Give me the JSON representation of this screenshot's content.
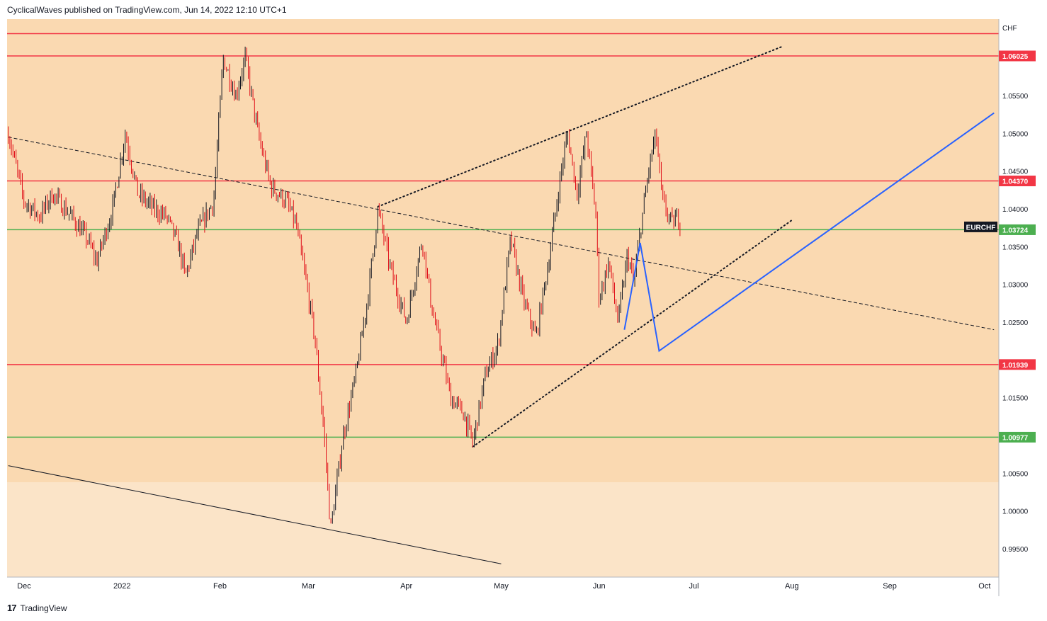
{
  "header": {
    "text": "CyclicalWaves published on TradingView.com, Jun 14, 2022 12:10 UTC+1"
  },
  "footer": {
    "logo_glyph": "17",
    "brand": "TradingView"
  },
  "chart_data": {
    "type": "candlestick",
    "symbol": "EURCHF",
    "currency": "CHF",
    "price_axis_ticks": [
      "1.05500",
      "1.05000",
      "1.04500",
      "1.04000",
      "1.03500",
      "1.03000",
      "1.02500",
      "1.01500",
      "1.00500",
      "1.00000",
      "0.99500"
    ],
    "time_axis_labels": [
      "Dec",
      "2022",
      "Feb",
      "Mar",
      "Apr",
      "May",
      "Jun",
      "Jul",
      "Aug",
      "Sep",
      "Oct"
    ],
    "ylim": [
      0.9935,
      1.065
    ],
    "horizontal_levels": [
      {
        "price": 1.06025,
        "label": "1.06025",
        "color": "#f23645"
      },
      {
        "price": 1.0437,
        "label": "1.04370",
        "color": "#f23645"
      },
      {
        "price": 1.01939,
        "label": "1.01939",
        "color": "#f23645"
      },
      {
        "price": 1.00977,
        "label": "1.00977",
        "color": "#4caf50"
      }
    ],
    "current_price": {
      "price": 1.03724,
      "label": "1.03724",
      "color": "#4caf50"
    },
    "top_line_price": 1.0632,
    "price_path": [
      [
        "Nov 26",
        1.05
      ],
      [
        "Dec 1",
        1.041
      ],
      [
        "Dec 6",
        1.039
      ],
      [
        "Dec 10",
        1.042
      ],
      [
        "Dec 16",
        1.039
      ],
      [
        "Dec 21",
        1.036
      ],
      [
        "Dec 24",
        1.033
      ],
      [
        "Dec 29",
        1.04
      ],
      [
        "Jan 2",
        1.05
      ],
      [
        "Jan 6",
        1.042
      ],
      [
        "Jan 11",
        1.04
      ],
      [
        "Jan 15",
        1.039
      ],
      [
        "Jan 19",
        1.035
      ],
      [
        "Jan 21",
        1.031
      ],
      [
        "Jan 25",
        1.037
      ],
      [
        "Jan 30",
        1.041
      ],
      [
        "Feb 2",
        1.06
      ],
      [
        "Feb 6",
        1.055
      ],
      [
        "Feb 9",
        1.06
      ],
      [
        "Feb 13",
        1.05
      ],
      [
        "Feb 17",
        1.043
      ],
      [
        "Feb 22",
        1.041
      ],
      [
        "Feb 25",
        1.038
      ],
      [
        "Feb 28",
        1.031
      ],
      [
        "Mar 3",
        1.023
      ],
      [
        "Mar 6",
        1.01
      ],
      [
        "Mar 8",
        0.9975
      ],
      [
        "Mar 12",
        1.01
      ],
      [
        "Mar 16",
        1.018
      ],
      [
        "Mar 20",
        1.029
      ],
      [
        "Mar 23",
        1.04
      ],
      [
        "Mar 27",
        1.032
      ],
      [
        "Apr 1",
        1.025
      ],
      [
        "Apr 6",
        1.036
      ],
      [
        "Apr 9",
        1.027
      ],
      [
        "Apr 15",
        1.015
      ],
      [
        "Apr 19",
        1.013
      ],
      [
        "Apr 22",
        1.009
      ],
      [
        "Apr 26",
        1.018
      ],
      [
        "Apr 30",
        1.022
      ],
      [
        "May 4",
        1.036
      ],
      [
        "May 8",
        1.028
      ],
      [
        "May 12",
        1.023
      ],
      [
        "May 16",
        1.033
      ],
      [
        "May 20",
        1.045
      ],
      [
        "May 22",
        1.05
      ],
      [
        "May 25",
        1.042
      ],
      [
        "May 28",
        1.05
      ],
      [
        "May 31",
        1.039
      ],
      [
        "Jun 1",
        1.028
      ],
      [
        "Jun 4",
        1.033
      ],
      [
        "Jun 7",
        1.025
      ],
      [
        "Jun 10",
        1.034
      ],
      [
        "Jun 12",
        1.03
      ],
      [
        "Jun 14",
        1.037
      ],
      [
        "Jun 17",
        1.046
      ],
      [
        "Jun 19",
        1.05
      ],
      [
        "Jun 21",
        1.041
      ],
      [
        "Jun 23",
        1.039
      ],
      [
        "Jun 24",
        1.038
      ],
      [
        "Jun 26",
        1.039
      ],
      [
        "Jun 27",
        1.0372
      ]
    ],
    "drawings": [
      {
        "name": "dashed-trendline",
        "style": "dashed",
        "color": "#131722",
        "points": [
          [
            "Nov 26",
            1.0495
          ],
          [
            "Oct 4",
            1.024
          ]
        ]
      },
      {
        "name": "upper-channel-dotted",
        "style": "dotted",
        "color": "#131722",
        "points": [
          [
            "Mar 23",
            1.0403
          ],
          [
            "Jul 29",
            1.0615
          ]
        ]
      },
      {
        "name": "lower-channel-dotted",
        "style": "dotted",
        "color": "#131722",
        "points": [
          [
            "Apr 22",
            1.0085
          ],
          [
            "Aug 1",
            1.0385
          ]
        ]
      },
      {
        "name": "lower-support-line",
        "style": "solid",
        "color": "#131722",
        "points": [
          [
            "Nov 26",
            1.006
          ],
          [
            "May 1",
            0.993
          ]
        ]
      },
      {
        "name": "blue-zigzag-projection",
        "style": "solid",
        "color": "#2962ff",
        "points": [
          [
            "Jun 9",
            1.024
          ],
          [
            "Jun 14",
            1.0355
          ],
          [
            "Jun 20",
            1.0212
          ],
          [
            "Oct 4",
            1.0527
          ]
        ]
      }
    ]
  }
}
